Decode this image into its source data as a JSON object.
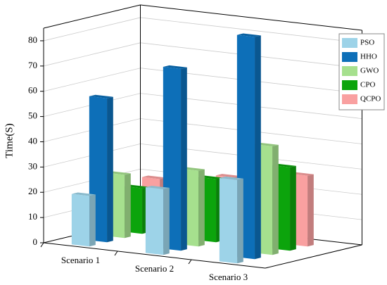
{
  "chart_data": {
    "type": "bar3d",
    "y_label": "Time(S)",
    "categories": [
      "Scenario 1",
      "Scenario 2",
      "Scenario 3"
    ],
    "series": [
      {
        "name": "PSO",
        "color": "#9dd3e8",
        "values": [
          20,
          26,
          33
        ]
      },
      {
        "name": "HHO",
        "color": "#0d6fb8",
        "values": [
          57,
          72,
          88
        ]
      },
      {
        "name": "GWO",
        "color": "#a6e08e",
        "values": [
          25,
          30,
          43
        ]
      },
      {
        "name": "CPO",
        "color": "#0ca40c",
        "values": [
          18,
          25,
          33
        ]
      },
      {
        "name": "QCPO",
        "color": "#f9a0a0",
        "values": [
          20,
          24,
          28
        ]
      }
    ],
    "ylim": [
      0,
      85
    ],
    "yticks": [
      0,
      10,
      20,
      30,
      40,
      50,
      60,
      70,
      80
    ],
    "grid": true,
    "legend": "right"
  }
}
